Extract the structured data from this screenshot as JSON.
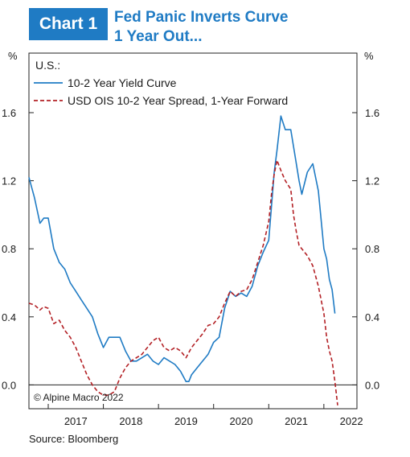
{
  "header": {
    "badge": "Chart 1",
    "title_line1": "Fed Panic Inverts Curve",
    "title_line2": "1 Year Out..."
  },
  "source": "Source: Bloomberg",
  "chart_data": {
    "type": "line",
    "title": "Fed Panic Inverts Curve 1 Year Out...",
    "legend_title": "U.S.:",
    "legend_position": "top-left",
    "unit_left": "%",
    "unit_right": "%",
    "xlim": [
      2016.65,
      2022.6
    ],
    "ylim": [
      -0.14,
      1.95
    ],
    "yticks": [
      0.0,
      0.4,
      0.8,
      1.2,
      1.6
    ],
    "ytick_labels": [
      "0.0",
      "0.4",
      "0.8",
      "1.2",
      "1.6"
    ],
    "xticks": [
      2017,
      2018,
      2019,
      2020,
      2021,
      2022
    ],
    "xtick_labels": [
      "2017",
      "2018",
      "2019",
      "2020",
      "2021",
      "2022"
    ],
    "zero_line": true,
    "grid": false,
    "copyright": "© Alpine Macro 2022",
    "series": [
      {
        "name": "10-2 Year Yield Curve",
        "color": "#1f7bc4",
        "style": "solid",
        "points": [
          [
            2016.65,
            1.22
          ],
          [
            2016.75,
            1.1
          ],
          [
            2016.85,
            0.95
          ],
          [
            2016.92,
            0.98
          ],
          [
            2017.0,
            0.98
          ],
          [
            2017.1,
            0.8
          ],
          [
            2017.2,
            0.72
          ],
          [
            2017.3,
            0.68
          ],
          [
            2017.4,
            0.6
          ],
          [
            2017.5,
            0.55
          ],
          [
            2017.6,
            0.5
          ],
          [
            2017.7,
            0.45
          ],
          [
            2017.8,
            0.4
          ],
          [
            2017.9,
            0.3
          ],
          [
            2018.0,
            0.22
          ],
          [
            2018.1,
            0.28
          ],
          [
            2018.2,
            0.28
          ],
          [
            2018.3,
            0.28
          ],
          [
            2018.4,
            0.2
          ],
          [
            2018.5,
            0.14
          ],
          [
            2018.6,
            0.14
          ],
          [
            2018.7,
            0.16
          ],
          [
            2018.8,
            0.18
          ],
          [
            2018.9,
            0.14
          ],
          [
            2019.0,
            0.12
          ],
          [
            2019.1,
            0.16
          ],
          [
            2019.2,
            0.14
          ],
          [
            2019.3,
            0.12
          ],
          [
            2019.4,
            0.08
          ],
          [
            2019.5,
            0.02
          ],
          [
            2019.55,
            0.02
          ],
          [
            2019.6,
            0.06
          ],
          [
            2019.7,
            0.1
          ],
          [
            2019.8,
            0.14
          ],
          [
            2019.9,
            0.18
          ],
          [
            2020.0,
            0.25
          ],
          [
            2020.1,
            0.28
          ],
          [
            2020.2,
            0.45
          ],
          [
            2020.3,
            0.55
          ],
          [
            2020.4,
            0.52
          ],
          [
            2020.5,
            0.54
          ],
          [
            2020.6,
            0.52
          ],
          [
            2020.7,
            0.58
          ],
          [
            2020.8,
            0.7
          ],
          [
            2020.9,
            0.78
          ],
          [
            2021.0,
            0.85
          ],
          [
            2021.05,
            1.05
          ],
          [
            2021.1,
            1.25
          ],
          [
            2021.15,
            1.38
          ],
          [
            2021.22,
            1.58
          ],
          [
            2021.3,
            1.5
          ],
          [
            2021.4,
            1.5
          ],
          [
            2021.5,
            1.3
          ],
          [
            2021.55,
            1.2
          ],
          [
            2021.6,
            1.12
          ],
          [
            2021.7,
            1.25
          ],
          [
            2021.8,
            1.3
          ],
          [
            2021.9,
            1.14
          ],
          [
            2022.0,
            0.8
          ],
          [
            2022.05,
            0.74
          ],
          [
            2022.1,
            0.62
          ],
          [
            2022.15,
            0.56
          ],
          [
            2022.2,
            0.42
          ]
        ]
      },
      {
        "name": "USD OIS 10-2 Year Spread, 1-Year Forward",
        "color": "#b32025",
        "style": "dashed",
        "points": [
          [
            2016.65,
            0.48
          ],
          [
            2016.75,
            0.47
          ],
          [
            2016.85,
            0.44
          ],
          [
            2016.92,
            0.46
          ],
          [
            2017.0,
            0.45
          ],
          [
            2017.1,
            0.36
          ],
          [
            2017.2,
            0.38
          ],
          [
            2017.3,
            0.32
          ],
          [
            2017.4,
            0.28
          ],
          [
            2017.5,
            0.22
          ],
          [
            2017.6,
            0.14
          ],
          [
            2017.7,
            0.06
          ],
          [
            2017.8,
            0.0
          ],
          [
            2017.9,
            -0.04
          ],
          [
            2018.0,
            -0.06
          ],
          [
            2018.1,
            -0.06
          ],
          [
            2018.2,
            -0.04
          ],
          [
            2018.3,
            0.04
          ],
          [
            2018.4,
            0.1
          ],
          [
            2018.5,
            0.14
          ],
          [
            2018.6,
            0.16
          ],
          [
            2018.7,
            0.18
          ],
          [
            2018.8,
            0.22
          ],
          [
            2018.9,
            0.26
          ],
          [
            2019.0,
            0.28
          ],
          [
            2019.1,
            0.22
          ],
          [
            2019.2,
            0.2
          ],
          [
            2019.3,
            0.22
          ],
          [
            2019.4,
            0.2
          ],
          [
            2019.5,
            0.16
          ],
          [
            2019.6,
            0.22
          ],
          [
            2019.7,
            0.26
          ],
          [
            2019.8,
            0.3
          ],
          [
            2019.9,
            0.35
          ],
          [
            2020.0,
            0.36
          ],
          [
            2020.1,
            0.4
          ],
          [
            2020.2,
            0.48
          ],
          [
            2020.3,
            0.55
          ],
          [
            2020.4,
            0.52
          ],
          [
            2020.5,
            0.55
          ],
          [
            2020.6,
            0.56
          ],
          [
            2020.7,
            0.62
          ],
          [
            2020.8,
            0.72
          ],
          [
            2020.9,
            0.82
          ],
          [
            2021.0,
            0.96
          ],
          [
            2021.05,
            1.12
          ],
          [
            2021.1,
            1.24
          ],
          [
            2021.15,
            1.32
          ],
          [
            2021.22,
            1.26
          ],
          [
            2021.3,
            1.2
          ],
          [
            2021.4,
            1.15
          ],
          [
            2021.45,
            1.0
          ],
          [
            2021.5,
            0.9
          ],
          [
            2021.55,
            0.82
          ],
          [
            2021.6,
            0.8
          ],
          [
            2021.7,
            0.76
          ],
          [
            2021.8,
            0.7
          ],
          [
            2021.9,
            0.58
          ],
          [
            2022.0,
            0.42
          ],
          [
            2022.05,
            0.28
          ],
          [
            2022.1,
            0.2
          ],
          [
            2022.15,
            0.14
          ],
          [
            2022.2,
            0.02
          ],
          [
            2022.25,
            -0.12
          ]
        ]
      }
    ]
  }
}
